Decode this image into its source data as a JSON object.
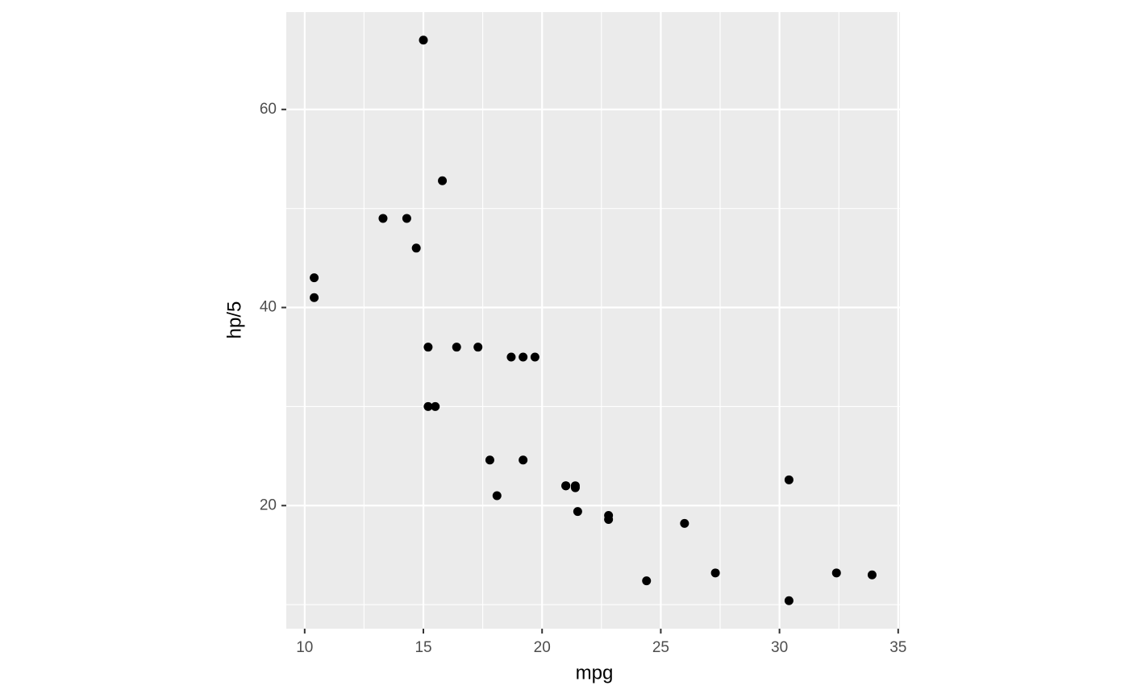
{
  "chart_data": {
    "type": "scatter",
    "x_label": "mpg",
    "y_label": "hp/5",
    "x": [
      21,
      21,
      22.8,
      21.4,
      18.7,
      18.1,
      14.3,
      24.4,
      22.8,
      19.2,
      17.8,
      16.4,
      17.3,
      15.2,
      10.4,
      10.4,
      14.7,
      32.4,
      30.4,
      33.9,
      21.5,
      15.5,
      15.2,
      13.3,
      19.2,
      27.3,
      26,
      30.4,
      15.8,
      19.7,
      15,
      21.4
    ],
    "values": [
      22,
      22,
      18.6,
      22,
      35,
      21,
      49,
      12.4,
      19,
      24.6,
      24.6,
      36,
      36,
      36,
      41,
      43,
      46,
      13.2,
      10.4,
      13,
      19.4,
      30,
      30,
      49,
      35,
      13.2,
      18.2,
      22.6,
      52.8,
      35,
      67,
      21.8
    ],
    "color": "#000000",
    "xlim": [
      9.225,
      35.075
    ],
    "ylim": [
      7.57,
      69.83
    ],
    "xticks": [
      10,
      15,
      20,
      25,
      30,
      35
    ],
    "yticks": [
      20,
      40,
      60
    ],
    "xminor": [
      12.5,
      17.5,
      22.5,
      27.5,
      32.5
    ],
    "yminor": [
      10,
      30,
      50
    ],
    "grid": true
  }
}
